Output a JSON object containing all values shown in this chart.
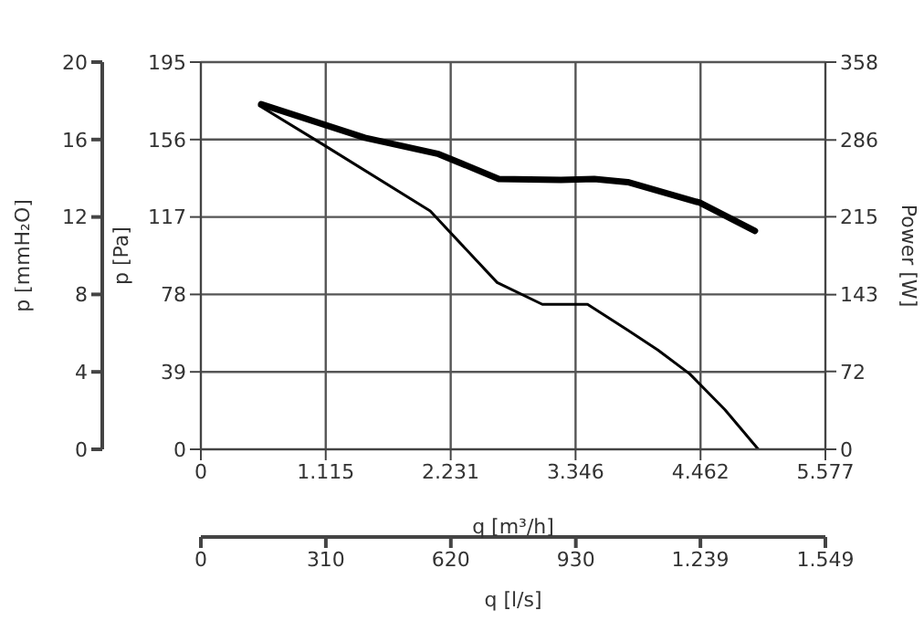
{
  "chart_data": {
    "type": "line",
    "xlabel": "q [m³/h]",
    "ylabel": "p [Pa]",
    "y2label": "Power [W]",
    "y3label": "p [mmH₂O]",
    "x2label": "q [l/s]",
    "xlim": [
      0,
      5577
    ],
    "xticks": [
      0,
      {
        "value": 1115,
        "label": "1.115"
      },
      {
        "value": 2231,
        "label": "2.231"
      },
      {
        "value": 3346,
        "label": "3.346"
      },
      {
        "value": 4462,
        "label": "4.462"
      },
      {
        "value": 5577,
        "label": "5.577"
      }
    ],
    "x2lim": [
      0,
      1549
    ],
    "x2ticks": [
      0,
      310,
      620,
      930,
      {
        "value": 1239,
        "label": "1.239"
      },
      {
        "value": 1549,
        "label": "1.549"
      }
    ],
    "ylim": [
      0,
      195
    ],
    "yticks": [
      0,
      39,
      78,
      117,
      156,
      195
    ],
    "y2lim": [
      0,
      358
    ],
    "y2ticks": [
      0,
      72,
      143,
      215,
      286,
      358
    ],
    "y3lim": [
      0,
      20
    ],
    "y3ticks": [
      0,
      4,
      8,
      12,
      16,
      20
    ],
    "grid": true,
    "marker": "none",
    "line_style": "solid",
    "series": [
      {
        "color": "#000000",
        "x": [
          523,
          1076,
          2048,
          2646,
          3049,
          3184,
          3453,
          3812,
          4081,
          4365,
          4679,
          4978
        ],
        "values": [
          173,
          154,
          120,
          84,
          73,
          73,
          73,
          60,
          50,
          38,
          20,
          0
        ]
      },
      {
        "color": "#000000",
        "axis": "y2",
        "x": [
          538,
          1465,
          2123,
          2661,
          3214,
          3513,
          3812,
          4455,
          4948
        ],
        "values": [
          319,
          288,
          273,
          250,
          249,
          250,
          247,
          228,
          202
        ]
      }
    ]
  }
}
